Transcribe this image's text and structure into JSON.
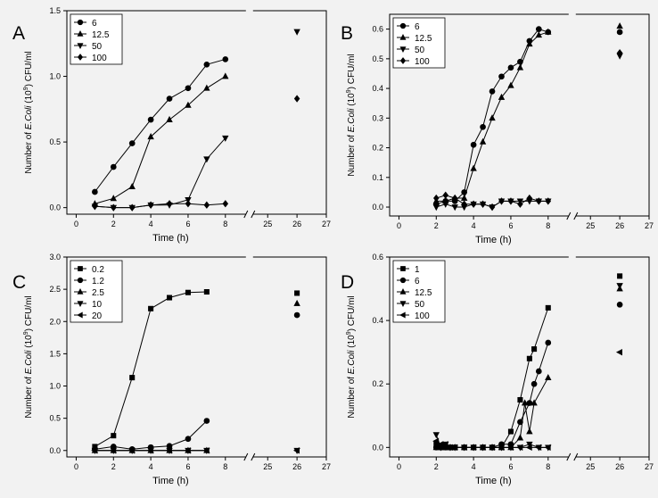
{
  "y_label": {
    "prefix": "Number of ",
    "italic": "E.Coli",
    "middle": " (10",
    "sup": "9",
    "suffix": ") CFU/ml"
  },
  "x_label": "Time (h)",
  "chart_data": [
    {
      "panel": "A",
      "type": "line",
      "xlabel": "Time (h)",
      "ylabel": "Number of E.Coli (10^9) CFU/ml",
      "ylim": [
        -0.05,
        1.5
      ],
      "yticks": [
        0.0,
        0.5,
        1.0,
        1.5
      ],
      "ytick_labels": [
        "0.0",
        "0.5",
        "1.0",
        "1.5"
      ],
      "xticks_left": [
        0,
        2,
        4,
        6,
        8
      ],
      "xtick_labels_left": [
        "0",
        "2",
        "4",
        "6",
        "8"
      ],
      "xticks_right": [
        25,
        26,
        27
      ],
      "xtick_labels_right": [
        "25",
        "26",
        "27"
      ],
      "legend": "top-left",
      "series": [
        {
          "name": "6",
          "marker": "circle",
          "x": [
            1,
            2,
            3,
            4,
            5,
            6,
            7,
            8
          ],
          "y": [
            0.12,
            0.31,
            0.49,
            0.67,
            0.83,
            0.91,
            1.09,
            1.13
          ],
          "x26": null
        },
        {
          "name": "12.5",
          "marker": "triangle-up",
          "x": [
            1,
            2,
            3,
            4,
            5,
            6,
            7,
            8
          ],
          "y": [
            0.03,
            0.07,
            0.16,
            0.54,
            0.67,
            0.78,
            0.91,
            1.0
          ],
          "x26": null
        },
        {
          "name": "50",
          "marker": "triangle-down",
          "x": [
            1,
            2,
            3,
            4,
            5,
            6,
            7,
            8
          ],
          "y": [
            0.01,
            0.0,
            0.0,
            0.02,
            0.02,
            0.06,
            0.37,
            0.53
          ],
          "x26": 1.34
        },
        {
          "name": "100",
          "marker": "diamond",
          "x": [
            1,
            2,
            3,
            4,
            5,
            6,
            7,
            8
          ],
          "y": [
            0.01,
            0.0,
            0.0,
            0.02,
            0.03,
            0.03,
            0.02,
            0.03
          ],
          "x26": 0.83
        }
      ]
    },
    {
      "panel": "B",
      "type": "line",
      "xlabel": "Time (h)",
      "ylabel": "Number of E.Coli (10^9) CFU/ml",
      "ylim": [
        -0.03,
        0.65
      ],
      "yticks": [
        0.0,
        0.1,
        0.2,
        0.3,
        0.4,
        0.5,
        0.6
      ],
      "ytick_labels": [
        "0.0",
        "0.1",
        "0.2",
        "0.3",
        "0.4",
        "0.5",
        "0.6"
      ],
      "xticks_left": [
        0,
        2,
        4,
        6,
        8
      ],
      "xtick_labels_left": [
        "0",
        "2",
        "4",
        "6",
        "8"
      ],
      "xticks_right": [
        25,
        26,
        27
      ],
      "xtick_labels_right": [
        "25",
        "26",
        "27"
      ],
      "legend": "top-left",
      "series": [
        {
          "name": "6",
          "marker": "circle",
          "x": [
            2,
            2.5,
            3,
            3.5,
            4,
            4.5,
            5,
            5.5,
            6,
            6.5,
            7,
            7.5,
            8
          ],
          "y": [
            0.01,
            0.02,
            0.02,
            0.05,
            0.21,
            0.27,
            0.39,
            0.44,
            0.47,
            0.49,
            0.56,
            0.6,
            0.59
          ],
          "x26": 0.59
        },
        {
          "name": "12.5",
          "marker": "triangle-up",
          "x": [
            2,
            2.5,
            3,
            3.5,
            4,
            4.5,
            5,
            5.5,
            6,
            6.5,
            7,
            7.5,
            8
          ],
          "y": [
            0.02,
            0.02,
            0.03,
            0.03,
            0.13,
            0.22,
            0.3,
            0.37,
            0.41,
            0.47,
            0.55,
            0.58,
            0.59
          ],
          "x26": 0.61
        },
        {
          "name": "50",
          "marker": "triangle-down",
          "x": [
            2,
            2.5,
            3,
            3.5,
            4,
            4.5,
            5,
            5.5,
            6,
            6.5,
            7,
            7.5,
            8
          ],
          "y": [
            0.0,
            0.01,
            0.0,
            0.0,
            0.01,
            0.01,
            0.0,
            0.02,
            0.02,
            0.02,
            0.02,
            0.02,
            0.02
          ],
          "x26": 0.51
        },
        {
          "name": "100",
          "marker": "diamond",
          "x": [
            2,
            2.5,
            3,
            3.5,
            4,
            4.5,
            5,
            5.5,
            6,
            6.5,
            7,
            7.5,
            8
          ],
          "y": [
            0.03,
            0.04,
            0.03,
            0.01,
            0.01,
            0.01,
            0.0,
            0.02,
            0.02,
            0.01,
            0.03,
            0.02,
            0.02
          ],
          "x26": 0.52
        }
      ]
    },
    {
      "panel": "C",
      "type": "line",
      "xlabel": "Time (h)",
      "ylabel": "Number of E.Coli (10^9) CFU/ml",
      "ylim": [
        -0.1,
        3.0
      ],
      "yticks": [
        0.0,
        0.5,
        1.0,
        1.5,
        2.0,
        2.5,
        3.0
      ],
      "ytick_labels": [
        "0.0",
        "0.5",
        "1.0",
        "1.5",
        "2.0",
        "2.5",
        "3.0"
      ],
      "xticks_left": [
        0,
        2,
        4,
        6,
        8
      ],
      "xtick_labels_left": [
        "0",
        "2",
        "4",
        "6",
        "8"
      ],
      "xticks_right": [
        25,
        26,
        27
      ],
      "xtick_labels_right": [
        "25",
        "26",
        "27"
      ],
      "legend": "top-left",
      "series": [
        {
          "name": "0.2",
          "marker": "square",
          "x": [
            1,
            2,
            3,
            4,
            5,
            6,
            7
          ],
          "y": [
            0.06,
            0.23,
            1.13,
            2.2,
            2.37,
            2.45,
            2.46
          ],
          "x26": 2.44
        },
        {
          "name": "1.2",
          "marker": "circle",
          "x": [
            1,
            2,
            3,
            4,
            5,
            6,
            7
          ],
          "y": [
            0.02,
            0.06,
            0.02,
            0.05,
            0.07,
            0.18,
            0.46
          ],
          "x26": 2.1
        },
        {
          "name": "2.5",
          "marker": "triangle-up",
          "x": [
            1,
            2,
            3,
            4,
            5,
            6,
            7
          ],
          "y": [
            0.0,
            0.0,
            0.0,
            0.0,
            0.0,
            0.0,
            0.0
          ],
          "x26": 2.28
        },
        {
          "name": "10",
          "marker": "triangle-down",
          "x": [
            1,
            2,
            3,
            4,
            5,
            6,
            7
          ],
          "y": [
            0.0,
            0.0,
            0.0,
            0.0,
            0.0,
            0.0,
            0.0
          ],
          "x26": 0.0
        },
        {
          "name": "20",
          "marker": "triangle-left",
          "x": [
            1,
            2,
            3,
            4,
            5,
            6,
            7
          ],
          "y": [
            0.0,
            0.0,
            0.0,
            0.0,
            0.0,
            0.0,
            0.0
          ],
          "x26": 0.0
        }
      ]
    },
    {
      "panel": "D",
      "type": "line",
      "xlabel": "Time (h)",
      "ylabel": "Number of E.Coli (10^9) CFU/ml",
      "ylim": [
        -0.03,
        0.6
      ],
      "yticks": [
        0.0,
        0.2,
        0.4,
        0.6
      ],
      "ytick_labels": [
        "0.0",
        "0.2",
        "0.4",
        "0.6"
      ],
      "xticks_left": [
        0,
        2,
        4,
        6,
        8
      ],
      "xtick_labels_left": [
        "0",
        "2",
        "4",
        "6",
        "8"
      ],
      "xticks_right": [
        25,
        26,
        27
      ],
      "xtick_labels_right": [
        "25",
        "26",
        "27"
      ],
      "legend": "top-left",
      "series": [
        {
          "name": "1",
          "marker": "square",
          "x": [
            2,
            2.25,
            2.5,
            2.75,
            3,
            3.5,
            4,
            4.5,
            5,
            5.5,
            6,
            6.5,
            7,
            7.25,
            8
          ],
          "y": [
            0.01,
            0.0,
            0.0,
            0.0,
            0.0,
            0.0,
            0.0,
            0.0,
            0.0,
            0.0,
            0.05,
            0.15,
            0.28,
            0.31,
            0.44
          ],
          "x26": 0.54
        },
        {
          "name": "6",
          "marker": "circle",
          "x": [
            2,
            2.25,
            2.5,
            2.75,
            3,
            3.5,
            4,
            4.5,
            5,
            5.5,
            6,
            6.5,
            7,
            7.25,
            7.5,
            8
          ],
          "y": [
            0.0,
            0.0,
            0.0,
            0.0,
            0.0,
            0.0,
            0.0,
            0.0,
            0.0,
            0.01,
            0.01,
            0.08,
            0.14,
            0.2,
            0.24,
            0.33
          ],
          "x26": 0.45
        },
        {
          "name": "12.5",
          "marker": "triangle-up",
          "x": [
            2,
            2.25,
            2.5,
            2.75,
            3,
            3.5,
            4,
            4.5,
            5,
            5.5,
            6,
            6.5,
            6.75,
            7,
            7.25,
            8
          ],
          "y": [
            0.0,
            0.0,
            0.0,
            0.0,
            0.0,
            0.0,
            0.0,
            0.0,
            0.0,
            0.0,
            0.0,
            0.03,
            0.14,
            0.05,
            0.14,
            0.22
          ],
          "x26": 0.5
        },
        {
          "name": "50",
          "marker": "triangle-down",
          "x": [
            2,
            2.25,
            2.5,
            2.75,
            3,
            3.5,
            4,
            4.5,
            5,
            5.5,
            6,
            6.5,
            7,
            7.5,
            8
          ],
          "y": [
            0.04,
            0.0,
            0.01,
            0.0,
            0.0,
            0.0,
            0.0,
            0.0,
            0.0,
            0.0,
            0.0,
            0.0,
            0.01,
            0.0,
            0.0
          ],
          "x26": 0.51
        },
        {
          "name": "100",
          "marker": "triangle-left",
          "x": [
            2,
            2.25,
            2.5,
            2.75,
            3,
            3.5,
            4,
            4.5,
            5,
            5.5,
            6,
            6.5,
            7,
            7.5,
            8
          ],
          "y": [
            0.02,
            0.01,
            0.01,
            0.0,
            0.0,
            0.0,
            0.0,
            0.0,
            0.0,
            0.0,
            0.0,
            0.0,
            0.0,
            0.0,
            0.0
          ],
          "x26": 0.3
        }
      ]
    }
  ]
}
